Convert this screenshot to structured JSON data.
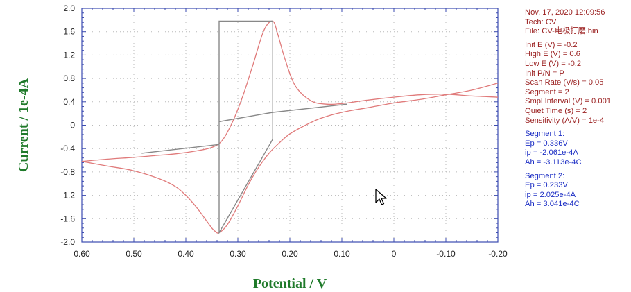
{
  "chart_data": {
    "type": "line",
    "xlabel": "Potential / V",
    "ylabel": "Current / 1e-4A",
    "xlim": [
      0.6,
      -0.2
    ],
    "ylim": [
      -2.0,
      2.0
    ],
    "x_ticks": [
      "0.60",
      "0.50",
      "0.40",
      "0.30",
      "0.20",
      "0.10",
      "0",
      "-0.10",
      "-0.20"
    ],
    "y_ticks": [
      "2.0",
      "1.6",
      "1.2",
      "0.8",
      "0.4",
      "0",
      "-0.4",
      "-0.8",
      "-1.2",
      "-1.6",
      "-2.0"
    ],
    "grid": "dotted",
    "series": [
      {
        "color": "#e07a7a",
        "x": [
          -0.2,
          -0.15,
          -0.1,
          -0.05,
          0.0,
          0.05,
          0.1,
          0.13,
          0.16,
          0.19,
          0.21,
          0.223,
          0.233,
          0.25,
          0.27,
          0.29,
          0.31,
          0.33,
          0.35,
          0.38,
          0.42,
          0.46,
          0.5,
          0.55,
          0.6
        ],
        "y": [
          0.48,
          0.5,
          0.53,
          0.52,
          0.48,
          0.43,
          0.37,
          0.36,
          0.42,
          0.68,
          1.15,
          1.55,
          1.78,
          1.62,
          1.06,
          0.51,
          0.06,
          -0.26,
          -0.38,
          -0.44,
          -0.49,
          -0.52,
          -0.55,
          -0.58,
          -0.62
        ]
      },
      {
        "color": "#e07a7a",
        "x": [
          0.6,
          0.55,
          0.5,
          0.45,
          0.42,
          0.4,
          0.38,
          0.36,
          0.35,
          0.343,
          0.336,
          0.32,
          0.3,
          0.28,
          0.26,
          0.24,
          0.22,
          0.2,
          0.17,
          0.14,
          0.1,
          0.05,
          0.0,
          -0.05,
          -0.1,
          -0.15,
          -0.2
        ],
        "y": [
          -0.62,
          -0.7,
          -0.78,
          -0.92,
          -1.05,
          -1.2,
          -1.4,
          -1.64,
          -1.76,
          -1.82,
          -1.84,
          -1.7,
          -1.38,
          -1.02,
          -0.72,
          -0.48,
          -0.3,
          -0.15,
          0.0,
          0.12,
          0.22,
          0.3,
          0.38,
          0.44,
          0.52,
          0.6,
          0.72
        ]
      }
    ],
    "baselines": {
      "color": "#888888",
      "x": [
        0.485,
        0.336,
        0.336,
        0.233,
        0.233,
        0.336,
        0.336,
        0.233,
        0.233,
        0.09
      ],
      "y": [
        -0.48,
        -0.33,
        0.06,
        0.22,
        1.78,
        1.78,
        -1.84,
        -0.24,
        0.22,
        0.36
      ]
    }
  },
  "info_panel": {
    "header": [
      "Nov. 17, 2020     12:09:56",
      "Tech: CV",
      "File: CV-电极打磨.bin"
    ],
    "params": [
      "Init E (V) = -0.2",
      "High E (V) = 0.6",
      "Low E (V) = -0.2",
      "Init P/N = P",
      "Scan Rate (V/s) = 0.05",
      "Segment = 2",
      "Smpl Interval (V) = 0.001",
      "Quiet Time (s) = 2",
      "Sensitivity (A/V) = 1e-4"
    ],
    "segment1": [
      "Segment 1:",
      "Ep = 0.336V",
      "ip = -2.061e-4A",
      "Ah = -3.113e-4C"
    ],
    "segment2": [
      "Segment 2:",
      "Ep = 0.233V",
      "ip = 2.025e-4A",
      "Ah = 3.041e-4C"
    ]
  },
  "colors": {
    "curve": "#e07a7a",
    "baseline": "#888888",
    "frame": "#3b4bb0",
    "axis_title": "#1f7a2a",
    "param_text": "#9a1f1f",
    "result_text": "#1c2ec4"
  }
}
